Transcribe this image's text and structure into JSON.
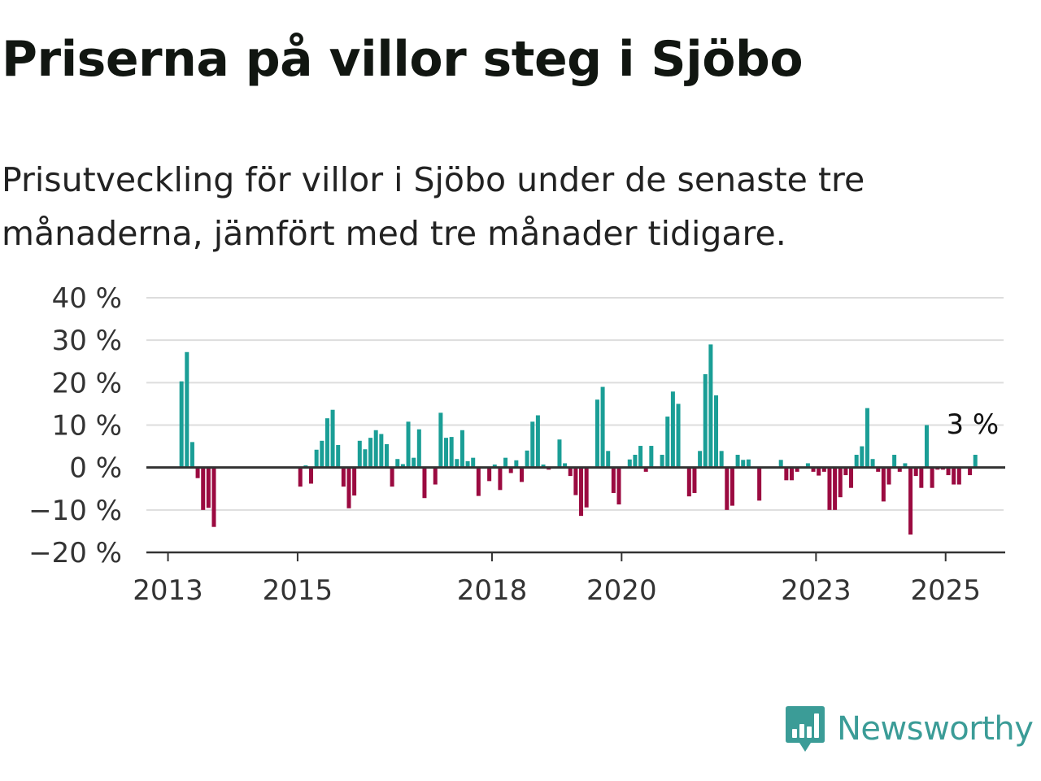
{
  "header": {
    "title": "Priserna på villor steg i Sjöbo",
    "subtitle": "Prisutveckling för villor i Sjöbo under de senaste tre månaderna, jämfört med tre månader tidigare."
  },
  "brand": {
    "name": "Newsworthy",
    "icon": "newsworthy-logo-icon",
    "color": "#3b9c97"
  },
  "colors": {
    "positive": "#1a9e96",
    "negative": "#9b0a40",
    "grid": "#dddddd",
    "axis": "#333333",
    "text": "#333333"
  },
  "chart_data": {
    "type": "bar",
    "title": "Priserna på villor steg i Sjöbo",
    "subtitle": "Prisutveckling för villor i Sjöbo under de senaste tre månaderna, jämfört med tre månader tidigare.",
    "xlabel": "",
    "ylabel": "",
    "ylim": [
      -20,
      40
    ],
    "yticks": [
      40,
      30,
      20,
      10,
      0,
      -10,
      -20
    ],
    "ytick_labels": [
      "40 %",
      "30 %",
      "20 %",
      "10 %",
      "0 %",
      "−10 %",
      "−20 %"
    ],
    "xticks": [
      2013,
      2015,
      2018,
      2020,
      2023,
      2025
    ],
    "xtick_labels": [
      "2013",
      "2015",
      "2018",
      "2020",
      "2023",
      "2025"
    ],
    "xlim_start": "2012-09",
    "grid": true,
    "legend": "none",
    "annotation": {
      "label": "3 %",
      "date": "2025-06",
      "value": 3
    },
    "dates": [
      "2013-03",
      "2013-04",
      "2013-05",
      "2013-06",
      "2013-07",
      "2013-08",
      "2013-09",
      "2015-01",
      "2015-02",
      "2015-03",
      "2015-04",
      "2015-05",
      "2015-06",
      "2015-07",
      "2015-08",
      "2015-09",
      "2015-10",
      "2015-11",
      "2015-12",
      "2016-01",
      "2016-02",
      "2016-03",
      "2016-04",
      "2016-05",
      "2016-06",
      "2016-07",
      "2016-08",
      "2016-09",
      "2016-10",
      "2016-11",
      "2016-12",
      "2017-01",
      "2017-02",
      "2017-03",
      "2017-04",
      "2017-05",
      "2017-06",
      "2017-07",
      "2017-08",
      "2017-09",
      "2017-10",
      "2017-11",
      "2017-12",
      "2018-01",
      "2018-02",
      "2018-03",
      "2018-04",
      "2018-05",
      "2018-06",
      "2018-07",
      "2018-08",
      "2018-09",
      "2018-10",
      "2018-11",
      "2018-12",
      "2019-01",
      "2019-02",
      "2019-03",
      "2019-04",
      "2019-05",
      "2019-06",
      "2019-07",
      "2019-08",
      "2019-09",
      "2019-10",
      "2019-11",
      "2019-12",
      "2020-01",
      "2020-02",
      "2020-03",
      "2020-04",
      "2020-05",
      "2020-06",
      "2020-07",
      "2020-08",
      "2020-09",
      "2020-10",
      "2020-11",
      "2020-12",
      "2021-01",
      "2021-02",
      "2021-03",
      "2021-04",
      "2021-05",
      "2021-06",
      "2021-07",
      "2021-08",
      "2021-09",
      "2021-10",
      "2021-11",
      "2021-12",
      "2022-01",
      "2022-02",
      "2022-03",
      "2022-04",
      "2022-05",
      "2022-06",
      "2022-07",
      "2022-08",
      "2022-09",
      "2022-10",
      "2022-11",
      "2022-12",
      "2023-01",
      "2023-02",
      "2023-03",
      "2023-04",
      "2023-05",
      "2023-06",
      "2023-07",
      "2023-08",
      "2023-09",
      "2023-10",
      "2023-11",
      "2023-12",
      "2024-01",
      "2024-02",
      "2024-03",
      "2024-04",
      "2024-05",
      "2024-06",
      "2024-07",
      "2024-08",
      "2024-09",
      "2024-10",
      "2024-11",
      "2024-12",
      "2025-01",
      "2025-02",
      "2025-03",
      "2025-04",
      "2025-05",
      "2025-06"
    ],
    "values": [
      20.3,
      27.2,
      6.0,
      -2.5,
      -10.0,
      -9.5,
      -14.0,
      -4.5,
      0.5,
      -3.8,
      4.2,
      6.3,
      11.6,
      13.6,
      5.3,
      -4.5,
      -9.6,
      -6.6,
      6.3,
      4.3,
      7.0,
      8.8,
      7.9,
      5.5,
      -4.5,
      2.0,
      0.8,
      10.8,
      2.3,
      9.0,
      -7.2,
      0.0,
      -4.0,
      12.9,
      7.0,
      7.2,
      2.0,
      8.8,
      1.5,
      2.3,
      -6.7,
      0.0,
      -3.2,
      0.7,
      -5.3,
      2.3,
      -1.3,
      1.7,
      -3.4,
      4.0,
      10.8,
      12.3,
      0.7,
      -0.5,
      0.0,
      6.6,
      1.0,
      -2.0,
      -6.5,
      -11.4,
      -9.4,
      0.0,
      16.0,
      19.0,
      3.9,
      -6.0,
      -8.7,
      0.0,
      1.9,
      3.0,
      5.1,
      -1.0,
      5.1,
      0.0,
      3.0,
      12.0,
      17.9,
      15.0,
      0.0,
      -6.8,
      -6.0,
      3.9,
      22.0,
      29.0,
      17.0,
      3.9,
      -10.0,
      -9.0,
      3.0,
      1.8,
      1.9,
      0.0,
      -7.8,
      0.0,
      0.0,
      0.0,
      1.8,
      -3.0,
      -3.0,
      -1.0,
      0.0,
      1.0,
      -1.0,
      -1.9,
      -1.0,
      -10.0,
      -10.0,
      -7.0,
      -1.8,
      -4.8,
      3.0,
      5.0,
      14.0,
      2.0,
      -1.0,
      -8.0,
      -4.0,
      3.0,
      -1.0,
      1.0,
      -15.8,
      -2.0,
      -4.8,
      10.0,
      -4.8,
      -0.5,
      -0.5,
      -1.8,
      -4.0,
      -4.0,
      0.0,
      -1.8,
      3.0
    ]
  }
}
